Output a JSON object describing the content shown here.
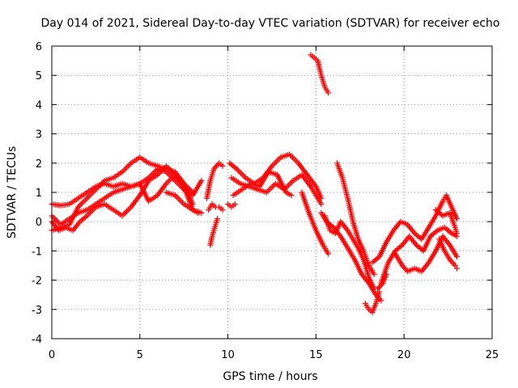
{
  "chart_data": {
    "type": "scatter",
    "title": "Day 014 of 2021, Sidereal Day-to-day VTEC variation (SDTVAR) for receiver echo",
    "xlabel": "GPS time / hours",
    "ylabel": "SDTVAR / TECUs",
    "xlim": [
      0,
      25
    ],
    "ylim": [
      -4,
      6
    ],
    "x_ticks": [
      0,
      5,
      10,
      15,
      20,
      25
    ],
    "x_tick_labels": [
      "0",
      "5",
      "10",
      "15",
      "20",
      "25"
    ],
    "y_ticks": [
      -4,
      -3,
      -2,
      -1,
      0,
      1,
      2,
      3,
      4,
      5,
      6
    ],
    "y_tick_labels": [
      "-4",
      "-3",
      "-2",
      "-1",
      "0",
      "1",
      "2",
      "3",
      "4",
      "5",
      "6"
    ],
    "grid": true,
    "marker": "+",
    "color": "#ff0000",
    "series": [
      {
        "name": "track-1",
        "points": [
          [
            0.0,
            0.6
          ],
          [
            0.5,
            0.55
          ],
          [
            1.0,
            0.6
          ],
          [
            1.5,
            0.8
          ],
          [
            2.0,
            1.0
          ],
          [
            2.5,
            1.2
          ],
          [
            3.0,
            1.3
          ],
          [
            3.5,
            1.2
          ],
          [
            4.0,
            1.3
          ],
          [
            4.5,
            1.2
          ],
          [
            5.0,
            1.3
          ],
          [
            5.5,
            1.5
          ],
          [
            6.0,
            1.8
          ],
          [
            6.5,
            1.7
          ],
          [
            7.0,
            1.4
          ],
          [
            7.5,
            1.1
          ],
          [
            8.0,
            0.9
          ],
          [
            8.5,
            1.4
          ]
        ]
      },
      {
        "name": "track-2",
        "points": [
          [
            0.0,
            -0.3
          ],
          [
            0.5,
            -0.2
          ],
          [
            1.0,
            -0.1
          ],
          [
            1.5,
            0.5
          ],
          [
            2.0,
            0.8
          ],
          [
            2.5,
            1.1
          ],
          [
            3.0,
            1.4
          ],
          [
            3.5,
            1.5
          ],
          [
            4.0,
            1.7
          ],
          [
            4.5,
            2.0
          ],
          [
            5.0,
            2.2
          ],
          [
            5.5,
            2.0
          ],
          [
            6.0,
            1.9
          ],
          [
            6.5,
            1.8
          ],
          [
            7.0,
            1.7
          ],
          [
            7.5,
            1.3
          ],
          [
            8.0,
            1.0
          ]
        ]
      },
      {
        "name": "track-3",
        "points": [
          [
            0.0,
            0.2
          ],
          [
            0.5,
            -0.1
          ],
          [
            1.0,
            0.1
          ],
          [
            1.5,
            0.3
          ],
          [
            2.0,
            0.4
          ],
          [
            2.5,
            0.6
          ],
          [
            3.0,
            0.8
          ],
          [
            3.5,
            1.0
          ],
          [
            4.0,
            1.1
          ],
          [
            4.5,
            1.2
          ],
          [
            5.0,
            1.3
          ],
          [
            5.5,
            0.7
          ],
          [
            6.0,
            0.9
          ],
          [
            6.5,
            1.3
          ],
          [
            7.0,
            1.6
          ],
          [
            7.5,
            1.3
          ],
          [
            8.0,
            0.6
          ]
        ]
      },
      {
        "name": "track-4",
        "points": [
          [
            0.0,
            0.0
          ],
          [
            0.4,
            -0.3
          ],
          [
            0.8,
            -0.2
          ],
          [
            1.2,
            -0.3
          ],
          [
            1.6,
            0.0
          ],
          [
            2.0,
            0.2
          ],
          [
            2.5,
            0.5
          ],
          [
            3.0,
            0.6
          ],
          [
            3.5,
            0.4
          ],
          [
            4.0,
            0.2
          ],
          [
            4.5,
            0.5
          ],
          [
            5.0,
            0.9
          ],
          [
            5.5,
            1.4
          ],
          [
            6.0,
            1.6
          ],
          [
            6.5,
            1.9
          ],
          [
            7.0,
            1.6
          ],
          [
            7.5,
            1.2
          ],
          [
            8.0,
            0.4
          ],
          [
            8.3,
            0.3
          ]
        ]
      },
      {
        "name": "track-5",
        "points": [
          [
            6.5,
            1.0
          ],
          [
            7.0,
            0.9
          ],
          [
            7.5,
            0.6
          ],
          [
            8.0,
            0.4
          ],
          [
            8.5,
            0.3
          ]
        ]
      },
      {
        "name": "track-6",
        "points": [
          [
            8.8,
            0.8
          ],
          [
            9.0,
            1.4
          ],
          [
            9.2,
            1.8
          ],
          [
            9.5,
            2.0
          ],
          [
            9.7,
            1.9
          ]
        ]
      },
      {
        "name": "track-7",
        "points": [
          [
            8.9,
            0.4
          ],
          [
            9.1,
            0.6
          ],
          [
            9.3,
            0.5
          ],
          [
            9.5,
            0.5
          ],
          [
            9.7,
            0.4
          ]
        ]
      },
      {
        "name": "track-8",
        "points": [
          [
            9.0,
            -0.8
          ],
          [
            9.1,
            -0.5
          ],
          [
            9.2,
            -0.3
          ],
          [
            9.3,
            -0.1
          ],
          [
            9.4,
            0.1
          ]
        ]
      },
      {
        "name": "track-9",
        "points": [
          [
            10.1,
            2.0
          ],
          [
            10.5,
            1.8
          ],
          [
            11.0,
            1.5
          ],
          [
            11.5,
            1.3
          ],
          [
            12.0,
            1.5
          ],
          [
            12.5,
            1.9
          ],
          [
            13.0,
            2.2
          ],
          [
            13.5,
            2.3
          ],
          [
            14.0,
            2.0
          ],
          [
            14.5,
            1.6
          ],
          [
            15.0,
            1.2
          ],
          [
            15.3,
            0.8
          ]
        ]
      },
      {
        "name": "track-10",
        "points": [
          [
            10.2,
            1.5
          ],
          [
            10.7,
            1.3
          ],
          [
            11.2,
            1.2
          ],
          [
            11.7,
            1.1
          ],
          [
            12.2,
            1.0
          ],
          [
            12.7,
            1.3
          ],
          [
            13.2,
            1.1
          ],
          [
            13.7,
            1.4
          ],
          [
            14.2,
            1.6
          ],
          [
            14.7,
            1.2
          ],
          [
            15.0,
            0.9
          ],
          [
            15.3,
            0.6
          ]
        ]
      },
      {
        "name": "track-11",
        "points": [
          [
            10.3,
            0.9
          ],
          [
            10.8,
            1.1
          ],
          [
            11.3,
            1.3
          ],
          [
            11.8,
            1.2
          ],
          [
            12.3,
            1.7
          ],
          [
            12.8,
            1.6
          ],
          [
            13.3,
            1.0
          ],
          [
            13.6,
            0.9
          ]
        ]
      },
      {
        "name": "track-12",
        "points": [
          [
            10.0,
            0.6
          ],
          [
            10.2,
            0.5
          ],
          [
            10.4,
            0.6
          ]
        ]
      },
      {
        "name": "track-13",
        "points": [
          [
            14.7,
            5.7
          ],
          [
            14.9,
            5.6
          ],
          [
            15.1,
            5.5
          ],
          [
            15.3,
            5.0
          ],
          [
            15.5,
            4.6
          ],
          [
            15.7,
            4.4
          ]
        ]
      },
      {
        "name": "track-14",
        "points": [
          [
            14.2,
            1.0
          ],
          [
            14.6,
            0.3
          ],
          [
            15.0,
            -0.3
          ],
          [
            15.4,
            -0.8
          ],
          [
            15.7,
            -1.1
          ]
        ]
      },
      {
        "name": "track-15",
        "points": [
          [
            15.5,
            0.2
          ],
          [
            15.8,
            -0.3
          ],
          [
            16.1,
            -0.4
          ],
          [
            16.4,
            0.0
          ],
          [
            16.8,
            -0.3
          ],
          [
            17.1,
            -0.6
          ],
          [
            17.4,
            -0.9
          ],
          [
            17.7,
            -1.3
          ],
          [
            18.0,
            -1.9
          ],
          [
            18.3,
            -2.3
          ],
          [
            18.5,
            -2.3
          ],
          [
            18.8,
            -2.1
          ],
          [
            19.0,
            -1.8
          ]
        ]
      },
      {
        "name": "track-16",
        "points": [
          [
            15.3,
            0.3
          ],
          [
            15.6,
            0.0
          ],
          [
            16.0,
            -0.2
          ],
          [
            16.4,
            -0.5
          ],
          [
            16.8,
            -0.9
          ],
          [
            17.2,
            -1.3
          ],
          [
            17.6,
            -1.8
          ],
          [
            18.0,
            -2.1
          ],
          [
            18.4,
            -2.5
          ],
          [
            18.7,
            -2.7
          ]
        ]
      },
      {
        "name": "track-17",
        "points": [
          [
            16.2,
            2.0
          ],
          [
            16.5,
            1.5
          ],
          [
            16.8,
            0.8
          ],
          [
            17.1,
            0.0
          ],
          [
            17.4,
            -0.6
          ],
          [
            17.7,
            -1.0
          ],
          [
            18.0,
            -1.5
          ],
          [
            18.3,
            -1.8
          ]
        ]
      },
      {
        "name": "track-18",
        "points": [
          [
            17.8,
            -2.8
          ],
          [
            18.0,
            -3.0
          ],
          [
            18.2,
            -3.1
          ],
          [
            18.4,
            -2.8
          ],
          [
            18.6,
            -2.4
          ]
        ]
      },
      {
        "name": "track-19",
        "points": [
          [
            18.2,
            -1.4
          ],
          [
            18.6,
            -1.2
          ],
          [
            19.0,
            -0.7
          ],
          [
            19.4,
            -0.3
          ],
          [
            19.8,
            0.0
          ],
          [
            20.2,
            -0.1
          ],
          [
            20.6,
            -0.4
          ],
          [
            21.0,
            -0.6
          ],
          [
            21.4,
            -0.2
          ],
          [
            21.8,
            0.2
          ],
          [
            22.2,
            0.7
          ],
          [
            22.4,
            0.9
          ],
          [
            22.7,
            0.5
          ],
          [
            23.0,
            0.1
          ]
        ]
      },
      {
        "name": "track-20",
        "points": [
          [
            18.7,
            -2.1
          ],
          [
            19.1,
            -1.4
          ],
          [
            19.5,
            -1.0
          ],
          [
            19.9,
            -0.8
          ],
          [
            20.3,
            -0.5
          ],
          [
            20.7,
            -0.8
          ],
          [
            21.1,
            -1.0
          ],
          [
            21.5,
            -0.5
          ],
          [
            21.9,
            -0.3
          ],
          [
            22.3,
            -0.2
          ],
          [
            22.7,
            -0.4
          ],
          [
            23.0,
            -0.5
          ]
        ]
      },
      {
        "name": "track-21",
        "points": [
          [
            19.5,
            -1.1
          ],
          [
            19.9,
            -1.5
          ],
          [
            20.2,
            -1.7
          ],
          [
            20.6,
            -1.6
          ],
          [
            21.0,
            -1.7
          ],
          [
            21.4,
            -1.4
          ],
          [
            21.8,
            -1.0
          ],
          [
            22.2,
            -0.5
          ],
          [
            22.6,
            -0.8
          ],
          [
            23.0,
            -1.2
          ]
        ]
      },
      {
        "name": "track-22",
        "points": [
          [
            22.0,
            -0.6
          ],
          [
            22.3,
            -1.0
          ],
          [
            22.6,
            -1.3
          ],
          [
            22.9,
            -1.5
          ],
          [
            23.0,
            -1.6
          ]
        ]
      },
      {
        "name": "track-23",
        "points": [
          [
            21.8,
            0.4
          ],
          [
            22.2,
            0.2
          ],
          [
            22.6,
            0.3
          ],
          [
            22.9,
            -0.2
          ],
          [
            23.0,
            -0.4
          ]
        ]
      }
    ]
  }
}
